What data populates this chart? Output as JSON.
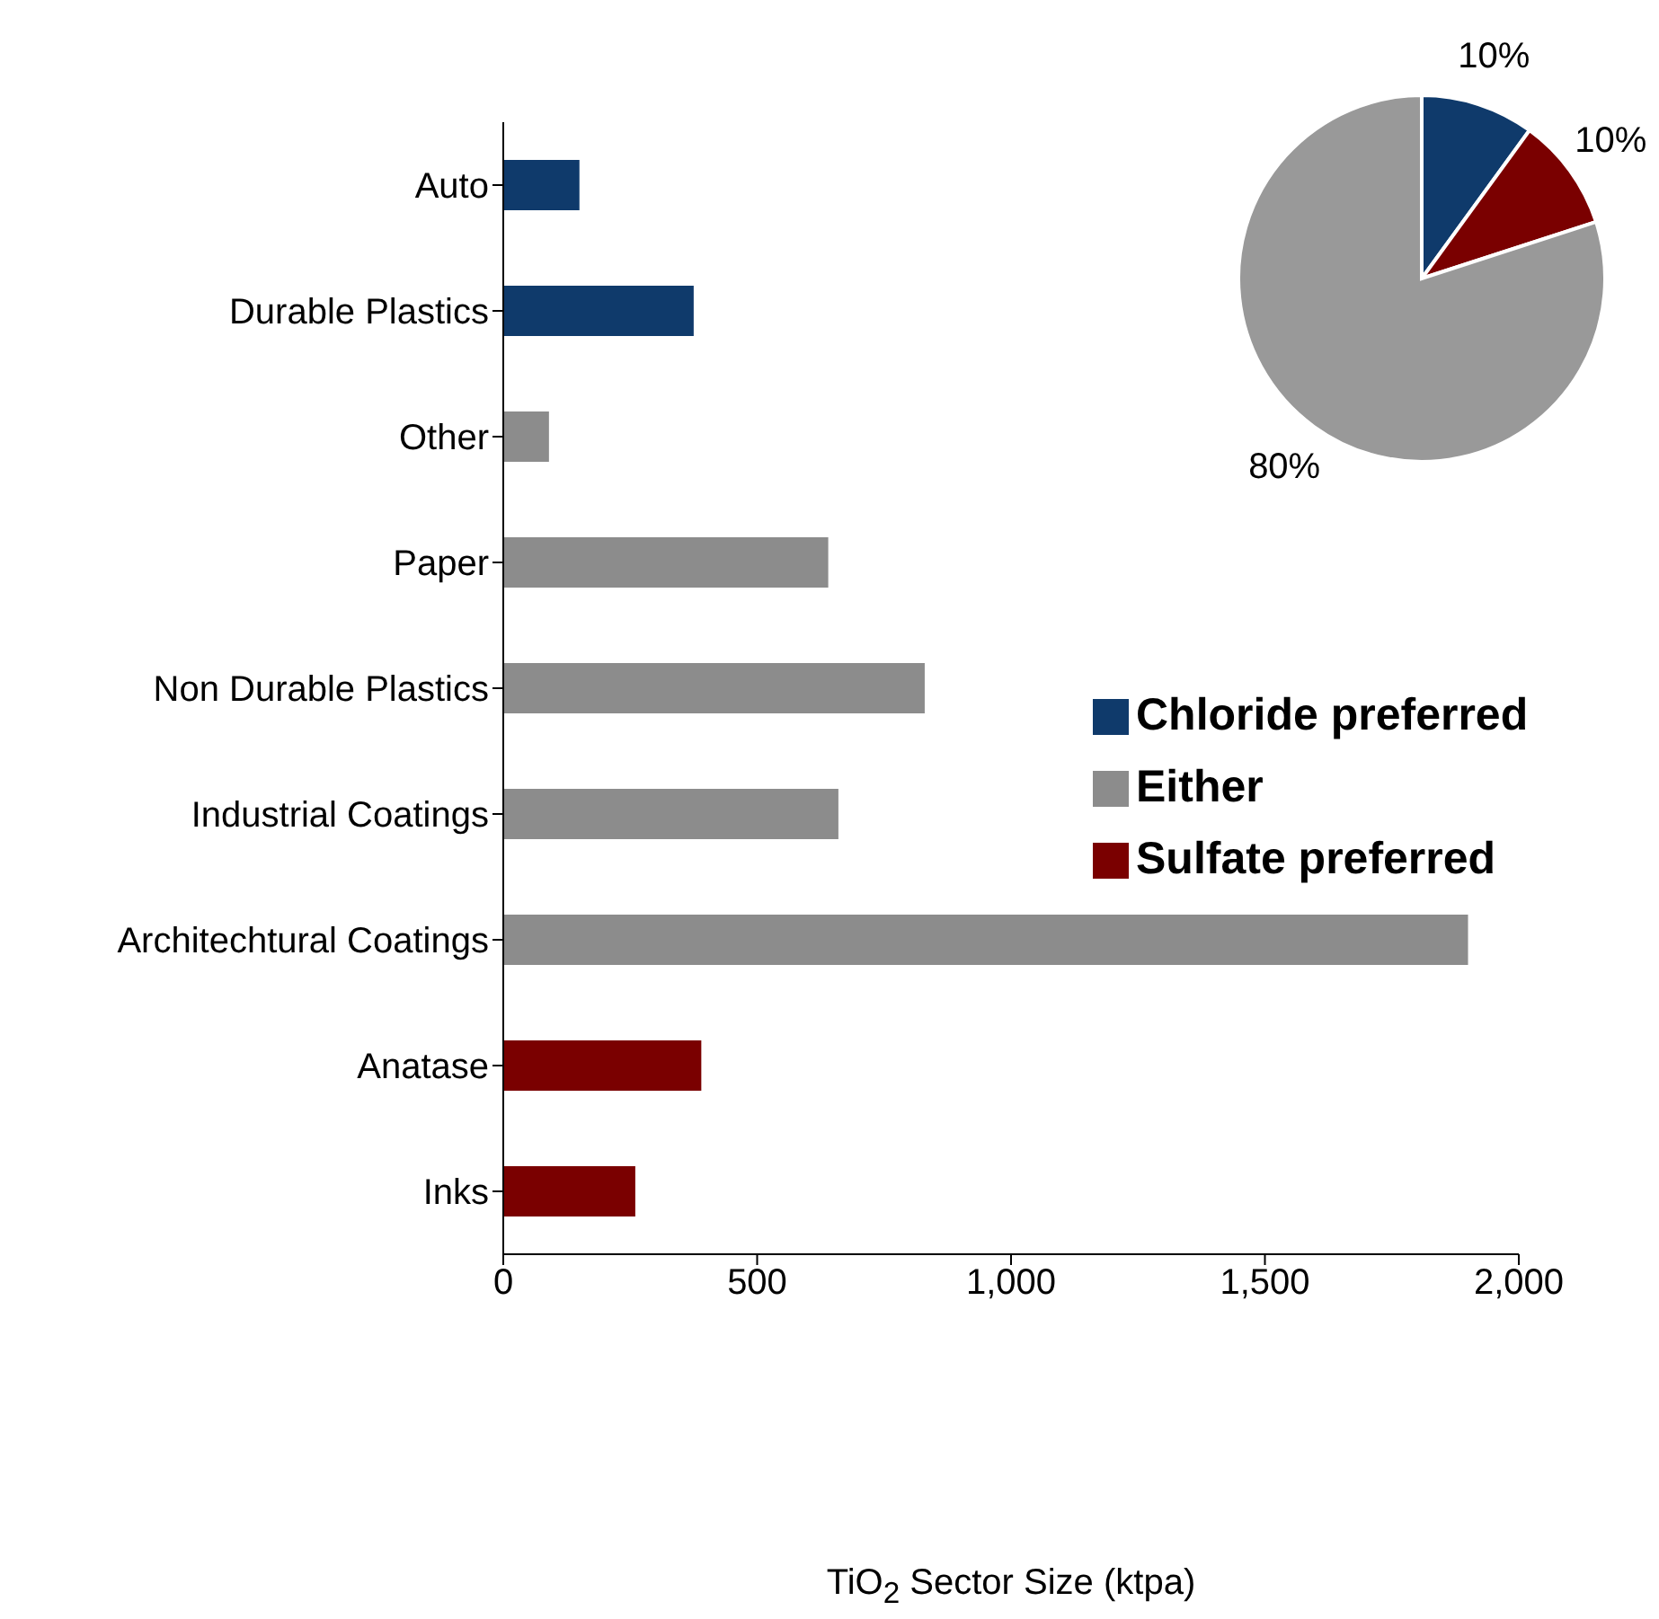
{
  "chart_data": [
    {
      "type": "bar",
      "orientation": "horizontal",
      "stacked": true,
      "xlabel": "TiO$_{2}$ Sector Size (ktpa)",
      "categories": [
        "Auto",
        "Durable Plastics",
        "Other",
        "Paper",
        "Non Durable Plastics",
        "Industrial Coatings",
        "Architechtural Coatings",
        "Anatase",
        "Inks"
      ],
      "series": [
        {
          "name": "Chloride preferred",
          "color": "#0f3a6b",
          "values": [
            150,
            375,
            null,
            null,
            null,
            null,
            null,
            null,
            null
          ]
        },
        {
          "name": "Either",
          "color": "#8c8c8c",
          "values": [
            null,
            null,
            90,
            640,
            830,
            660,
            1900,
            null,
            null
          ]
        },
        {
          "name": "Sulfate preferred",
          "color": "#7a0000",
          "values": [
            null,
            null,
            null,
            null,
            null,
            null,
            null,
            390,
            260
          ]
        }
      ],
      "xlim": [
        0,
        2000
      ],
      "xticks": [
        0,
        {
          "value": 500,
          "label": "500"
        },
        {
          "value": 1000,
          "label": "1,000"
        },
        {
          "value": 1500,
          "label": "1,500"
        },
        {
          "value": 2000,
          "label": "2,000"
        }
      ],
      "grid": false,
      "legend": "right"
    },
    {
      "type": "pie",
      "categories": [
        null,
        null,
        null
      ],
      "values": [
        10,
        10,
        80
      ],
      "colors": [
        "#0f3a6b",
        "#7a0000",
        "#999999"
      ],
      "value_labels": [
        "10%",
        "10%",
        "80%"
      ]
    }
  ]
}
